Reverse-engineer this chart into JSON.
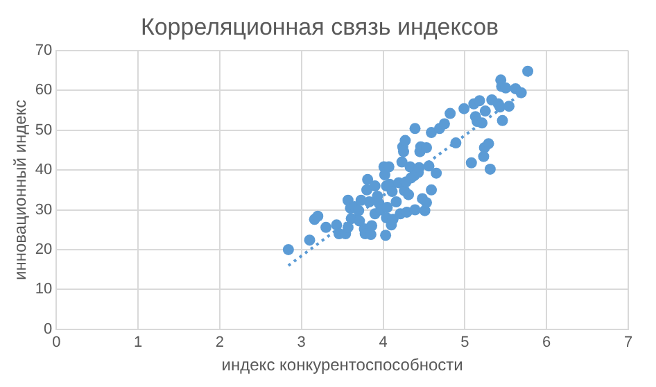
{
  "chart_data": {
    "type": "scatter",
    "title": "Корреляционная связь индексов",
    "xlabel": "индекс конкурентоспособности",
    "ylabel": "инновационный индекс",
    "xlim": [
      0,
      7
    ],
    "xticks": [
      0,
      1,
      2,
      3,
      4,
      5,
      6,
      7
    ],
    "ylim": [
      0,
      70
    ],
    "yticks": [
      0,
      10,
      20,
      30,
      40,
      50,
      60,
      70
    ],
    "grid": true,
    "legend": false,
    "marker": "circle",
    "series": [
      {
        "color": "#5b9bd5",
        "x": [
          2.84,
          3.1,
          3.16,
          3.2,
          3.3,
          3.43,
          3.46,
          3.54,
          3.57,
          3.57,
          3.6,
          3.61,
          3.65,
          3.7,
          3.71,
          3.73,
          3.77,
          3.78,
          3.81,
          3.8,
          3.83,
          3.85,
          3.86,
          3.9,
          3.9,
          3.93,
          3.95,
          3.97,
          4.01,
          4.02,
          4.04,
          4.04,
          4.03,
          4.05,
          4.07,
          4.08,
          4.1,
          4.11,
          4.12,
          4.16,
          4.19,
          4.21,
          4.23,
          4.24,
          4.25,
          4.26,
          4.27,
          4.28,
          4.31,
          4.29,
          4.33,
          4.34,
          4.38,
          4.39,
          4.39,
          4.43,
          4.44,
          4.45,
          4.46,
          4.48,
          4.51,
          4.53,
          4.53,
          4.56,
          4.59,
          4.59,
          4.65,
          4.69,
          4.75,
          4.82,
          4.89,
          4.99,
          5.08,
          5.11,
          5.13,
          5.15,
          5.18,
          5.21,
          5.23,
          5.25,
          5.24,
          5.29,
          5.31,
          5.33,
          5.41,
          5.43,
          5.44,
          5.45,
          5.46,
          5.5,
          5.54,
          5.62,
          5.69,
          5.77
        ],
        "values": [
          20,
          22.4,
          27.6,
          28.4,
          25.6,
          26.2,
          24,
          24,
          25.6,
          32.4,
          30.4,
          27.8,
          30.8,
          29.8,
          27.2,
          32.4,
          25.2,
          24,
          37.6,
          35,
          32,
          23.8,
          26,
          36,
          29,
          33.4,
          31.6,
          30,
          40.8,
          38.8,
          36,
          28,
          23.6,
          30.6,
          40.8,
          36.4,
          26.2,
          34.6,
          27.6,
          32,
          36.8,
          29,
          42,
          45.8,
          44.6,
          34.8,
          47.4,
          37,
          33.8,
          29.4,
          40.8,
          38,
          38.6,
          50.4,
          30,
          39.4,
          40.6,
          44.6,
          45.8,
          32.8,
          29.8,
          45.6,
          31.8,
          41,
          35,
          49.4,
          39.2,
          50.4,
          51.6,
          54.2,
          46.8,
          55.4,
          41.8,
          56.6,
          53.4,
          52.2,
          57.4,
          51.8,
          43.4,
          54.8,
          45.6,
          46.6,
          40.2,
          57.6,
          56.6,
          55.8,
          62.6,
          61,
          52.4,
          60.6,
          56,
          60.4,
          59.4,
          64.8
        ]
      },
      {
        "type": "line",
        "color": "#5b9bd5",
        "line_style": "dotted",
        "marker": "none",
        "x": [
          2.84,
          5.72
        ],
        "values": [
          16,
          59.6
        ]
      }
    ]
  }
}
